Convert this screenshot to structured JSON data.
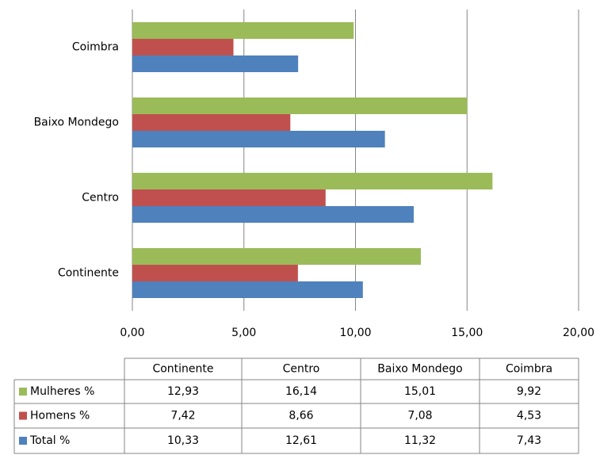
{
  "chart_data": {
    "type": "bar",
    "orientation": "horizontal",
    "categories": [
      "Continente",
      "Centro",
      "Baixo Mondego",
      "Coimbra"
    ],
    "series": [
      {
        "name": "Mulheres %",
        "color": "#9bbb59",
        "values": [
          12.93,
          16.14,
          15.01,
          9.92
        ],
        "value_labels": [
          "12,93",
          "16,14",
          "15,01",
          "9,92"
        ]
      },
      {
        "name": "Homens %",
        "color": "#c0504d",
        "values": [
          7.42,
          8.66,
          7.08,
          4.53
        ],
        "value_labels": [
          "7,42",
          "8,66",
          "7,08",
          "4,53"
        ]
      },
      {
        "name": "Total %",
        "color": "#4f81bd",
        "values": [
          10.33,
          12.61,
          11.32,
          7.43
        ],
        "value_labels": [
          "10,33",
          "12,61",
          "11,32",
          "7,43"
        ]
      }
    ],
    "xlim": [
      0,
      20
    ],
    "xticks": [
      {
        "value": 0,
        "label": "0,00"
      },
      {
        "value": 5,
        "label": "5,00"
      },
      {
        "value": 10,
        "label": "10,00"
      },
      {
        "value": 15,
        "label": "15,00"
      },
      {
        "value": 20,
        "label": "20,00"
      }
    ],
    "grid": true,
    "data_table": true
  }
}
